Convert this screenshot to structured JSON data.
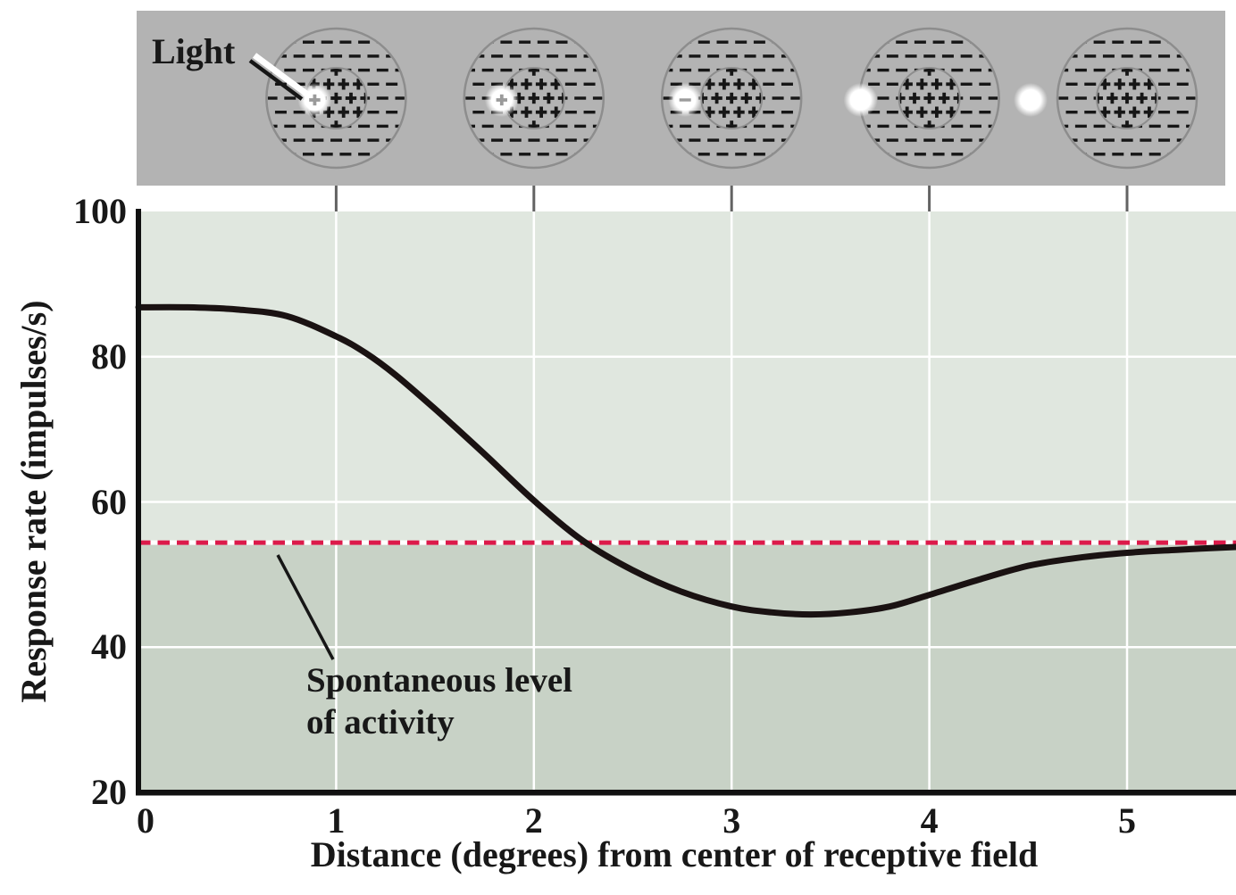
{
  "annotations": {
    "light": "Light",
    "spontaneous": "Spontaneous level\nof activity"
  },
  "chart_data": {
    "type": "line",
    "title": "",
    "xlabel": "Distance (degrees) from center of receptive field",
    "ylabel": "Response rate (impulses/s)",
    "xlim": [
      0,
      5.55
    ],
    "ylim": [
      20,
      100
    ],
    "x_ticks": [
      0,
      1,
      2,
      3,
      4,
      5
    ],
    "y_ticks": [
      20,
      40,
      60,
      80,
      100
    ],
    "grid": true,
    "legend_position": "none",
    "spontaneous_level": 54.4,
    "series": [
      {
        "name": "Response rate",
        "type": "line",
        "x": [
          0,
          0.25,
          0.5,
          0.75,
          1.0,
          1.15,
          1.3,
          1.5,
          1.75,
          2.0,
          2.25,
          2.5,
          2.75,
          3.0,
          3.2,
          3.4,
          3.6,
          3.8,
          4.0,
          4.25,
          4.5,
          4.75,
          5.0,
          5.25,
          5.55
        ],
        "y": [
          86.8,
          86.8,
          86.5,
          85.6,
          82.8,
          80.5,
          77.5,
          72.8,
          66.6,
          60.2,
          54.6,
          50.6,
          47.6,
          45.6,
          44.8,
          44.5,
          44.8,
          45.6,
          47.2,
          49.3,
          51.2,
          52.3,
          53.0,
          53.4,
          53.8
        ]
      },
      {
        "name": "Spontaneous level of activity",
        "type": "hline",
        "style": "dashed",
        "value": 54.4
      }
    ]
  },
  "receptive_field_banner": {
    "center_symbol": "+",
    "surround_symbol": "-",
    "diagrams": [
      {
        "light_position": "just inside center region",
        "spot_offset": 24,
        "overlay": "plus"
      },
      {
        "light_position": "on center-surround boundary",
        "spot_offset": 36,
        "overlay": "plus"
      },
      {
        "light_position": "within surround",
        "spot_offset": 52,
        "overlay": "dash"
      },
      {
        "light_position": "on outer edge of surround",
        "spot_offset": 77,
        "overlay": "none"
      },
      {
        "light_position": "outside receptive field",
        "spot_offset": 108,
        "overlay": "none"
      }
    ]
  },
  "colors": {
    "banner_gray": "#b3b3b3",
    "circle_stroke": "#8d8d8d",
    "symbol_black": "#161616",
    "overlay_gray": "#9b9b9b",
    "upper_band": "#e0e7df",
    "lower_band": "#c8d2c6",
    "gridline": "#ffffff",
    "spontaneous_red": "#dc1a4a",
    "curve": "#1a1212",
    "connector": "#636363",
    "axis": "#111111",
    "spot_white": "#ffffff"
  }
}
